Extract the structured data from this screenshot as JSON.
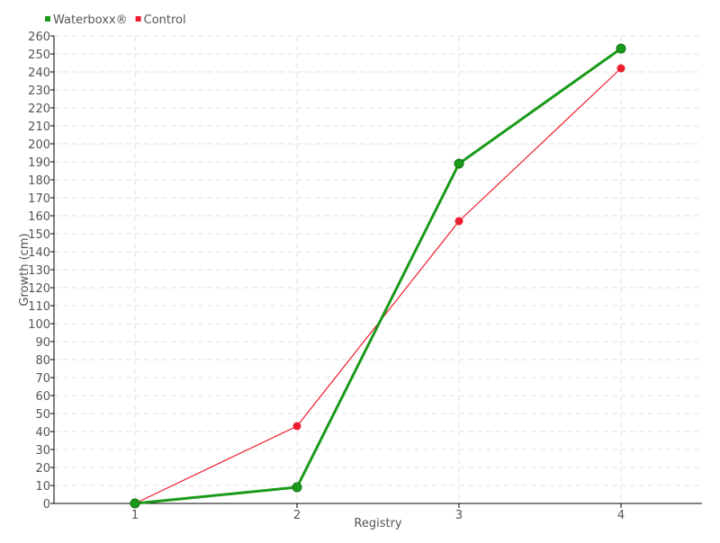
{
  "chart_data": {
    "type": "line",
    "title": "",
    "xlabel": "Registry",
    "ylabel": "Growth (cm)",
    "categories": [
      "1",
      "2",
      "3",
      "4"
    ],
    "ylim": [
      0,
      260
    ],
    "ytick_step": 10,
    "grid": true,
    "legend_position": "top-left",
    "series": [
      {
        "name": "Waterboxx®",
        "color": "#1a9a1a",
        "values": [
          0,
          9,
          189,
          253
        ]
      },
      {
        "name": "Control",
        "color": "#ee1c2e",
        "values": [
          0,
          43,
          157,
          242
        ]
      }
    ]
  }
}
